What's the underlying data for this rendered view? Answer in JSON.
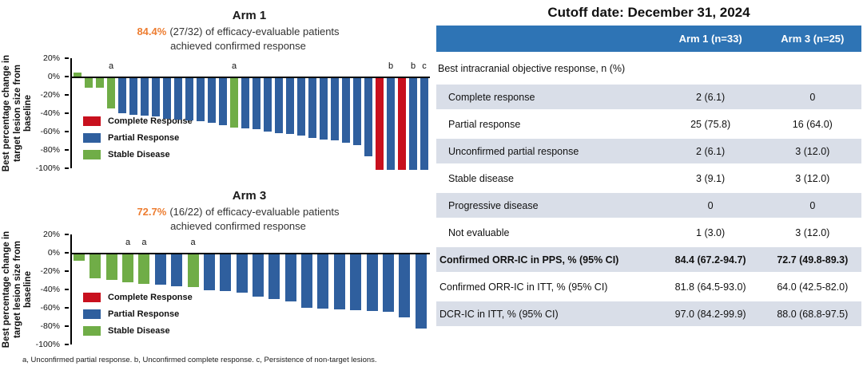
{
  "footnote": "a, Unconfirmed partial response. b, Unconfirmed complete response. c, Persistence of non-target lesions.",
  "colors": {
    "complete_response": "#C8101E",
    "partial_response": "#2F5F9E",
    "stable_disease": "#70AD47",
    "highlight_orange": "#ED7D31",
    "table_header_blue": "#2E74B5",
    "table_row_shade": "#D9DEE8"
  },
  "legend": [
    {
      "key": "CR",
      "label": "Complete Response"
    },
    {
      "key": "PR",
      "label": "Partial Response"
    },
    {
      "key": "SD",
      "label": "Stable Disease"
    }
  ],
  "y_axis": {
    "title_lines": [
      "Best percentage change in",
      "target lesion size from",
      "baseline"
    ],
    "ticks": [
      "20%",
      "0%",
      "-20%",
      "-40%",
      "-60%",
      "-80%",
      "-100%"
    ],
    "ylim": [
      20,
      -100
    ]
  },
  "chart_data": [
    {
      "type": "bar",
      "title": "Arm 1",
      "headline_pct": "84.4%",
      "headline_rest": "(27/32) of efficacy-evaluable patients",
      "headline_line2": "achieved confirmed response",
      "ylabel": "Best percentage change in target lesion size from baseline",
      "ylim": [
        20,
        -100
      ],
      "patients": [
        {
          "value": 4,
          "response": "SD"
        },
        {
          "value": -10,
          "response": "SD"
        },
        {
          "value": -10,
          "response": "SD"
        },
        {
          "value": -33,
          "response": "SD",
          "note": "a"
        },
        {
          "value": -38,
          "response": "PR"
        },
        {
          "value": -40,
          "response": "PR"
        },
        {
          "value": -41,
          "response": "PR"
        },
        {
          "value": -42,
          "response": "PR"
        },
        {
          "value": -44,
          "response": "PR"
        },
        {
          "value": -45,
          "response": "PR"
        },
        {
          "value": -46,
          "response": "PR"
        },
        {
          "value": -47,
          "response": "PR"
        },
        {
          "value": -49,
          "response": "PR"
        },
        {
          "value": -51,
          "response": "PR"
        },
        {
          "value": -54,
          "response": "SD",
          "note": "a"
        },
        {
          "value": -55,
          "response": "PR"
        },
        {
          "value": -56,
          "response": "PR"
        },
        {
          "value": -58,
          "response": "PR"
        },
        {
          "value": -60,
          "response": "PR"
        },
        {
          "value": -61,
          "response": "PR"
        },
        {
          "value": -63,
          "response": "PR"
        },
        {
          "value": -65,
          "response": "PR"
        },
        {
          "value": -67,
          "response": "PR"
        },
        {
          "value": -68,
          "response": "PR"
        },
        {
          "value": -70,
          "response": "PR"
        },
        {
          "value": -73,
          "response": "PR"
        },
        {
          "value": -85,
          "response": "PR"
        },
        {
          "value": -100,
          "response": "CR"
        },
        {
          "value": -100,
          "response": "PR",
          "note": "b"
        },
        {
          "value": -100,
          "response": "CR"
        },
        {
          "value": -100,
          "response": "PR",
          "note": "b"
        },
        {
          "value": -100,
          "response": "PR",
          "note": "c"
        }
      ]
    },
    {
      "type": "bar",
      "title": "Arm 3",
      "headline_pct": "72.7%",
      "headline_rest": "(16/22) of efficacy-evaluable patients",
      "headline_line2": "achieved confirmed response",
      "ylabel": "Best percentage change in target lesion size from baseline",
      "ylim": [
        20,
        -100
      ],
      "patients": [
        {
          "value": -7,
          "response": "SD"
        },
        {
          "value": -26,
          "response": "SD"
        },
        {
          "value": -28,
          "response": "SD"
        },
        {
          "value": -30,
          "response": "SD",
          "note": "a"
        },
        {
          "value": -32,
          "response": "SD",
          "note": "a"
        },
        {
          "value": -33,
          "response": "PR"
        },
        {
          "value": -35,
          "response": "PR"
        },
        {
          "value": -36,
          "response": "SD",
          "note": "a"
        },
        {
          "value": -39,
          "response": "PR"
        },
        {
          "value": -40,
          "response": "PR"
        },
        {
          "value": -42,
          "response": "PR"
        },
        {
          "value": -46,
          "response": "PR"
        },
        {
          "value": -49,
          "response": "PR"
        },
        {
          "value": -51,
          "response": "PR"
        },
        {
          "value": -58,
          "response": "PR"
        },
        {
          "value": -59,
          "response": "PR"
        },
        {
          "value": -60,
          "response": "PR"
        },
        {
          "value": -61,
          "response": "PR"
        },
        {
          "value": -62,
          "response": "PR"
        },
        {
          "value": -63,
          "response": "PR"
        },
        {
          "value": -69,
          "response": "PR"
        },
        {
          "value": -81,
          "response": "PR"
        }
      ]
    }
  ],
  "table": {
    "title": "Cutoff date: December 31, 2024",
    "columns": [
      "",
      "Arm 1 (n=33)",
      "Arm 3 (n=25)"
    ],
    "section_header": "Best intracranial objective response, n (%)",
    "rows": [
      {
        "label": "Complete response",
        "arm1": "2 (6.1)",
        "arm3": "0",
        "indent": true,
        "shaded": true
      },
      {
        "label": "Partial response",
        "arm1": "25 (75.8)",
        "arm3": "16 (64.0)",
        "indent": true,
        "shaded": false
      },
      {
        "label": "Unconfirmed partial response",
        "arm1": "2 (6.1)",
        "arm3": "3 (12.0)",
        "indent": true,
        "shaded": true
      },
      {
        "label": "Stable disease",
        "arm1": "3 (9.1)",
        "arm3": "3 (12.0)",
        "indent": true,
        "shaded": false
      },
      {
        "label": "Progressive disease",
        "arm1": "0",
        "arm3": "0",
        "indent": true,
        "shaded": true
      },
      {
        "label": "Not evaluable",
        "arm1": "1 (3.0)",
        "arm3": "3 (12.0)",
        "indent": true,
        "shaded": false
      },
      {
        "label": "Confirmed ORR-IC in PPS, % (95% CI)",
        "arm1": "84.4 (67.2-94.7)",
        "arm3": "72.7 (49.8-89.3)",
        "indent": false,
        "shaded": true,
        "bold": true
      },
      {
        "label": "Confirmed ORR-IC in ITT, % (95% CI)",
        "arm1": "81.8 (64.5-93.0)",
        "arm3": "64.0 (42.5-82.0)",
        "indent": false,
        "shaded": false
      },
      {
        "label": "DCR-IC in ITT, % (95% CI)",
        "arm1": "97.0 (84.2-99.9)",
        "arm3": "88.0 (68.8-97.5)",
        "indent": false,
        "shaded": true
      }
    ]
  }
}
